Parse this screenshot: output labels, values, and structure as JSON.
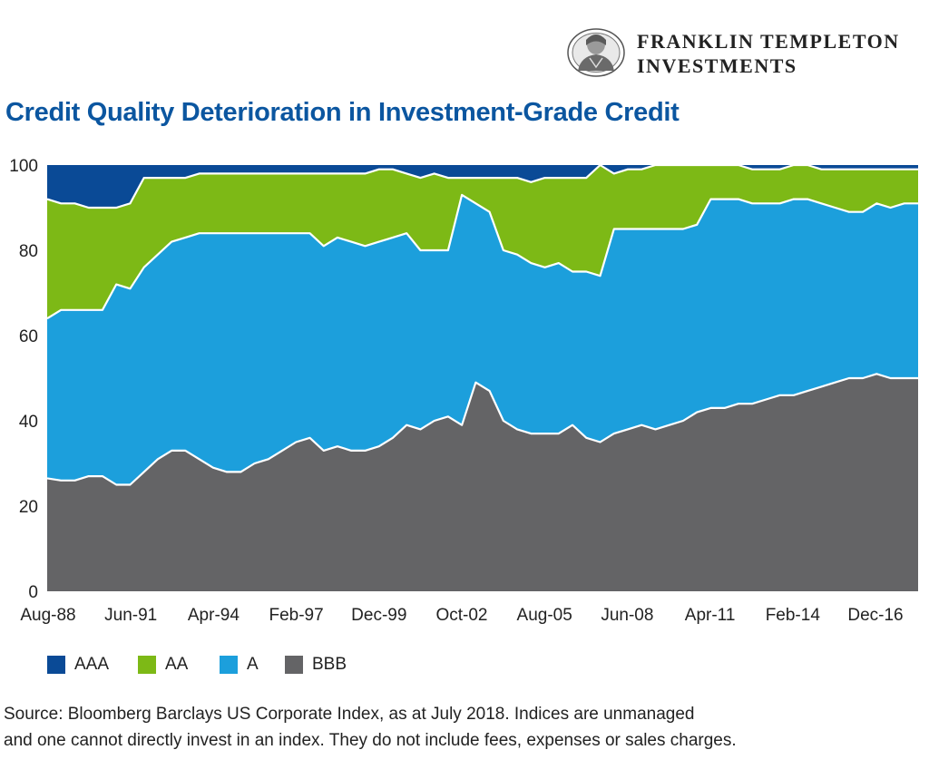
{
  "header": {
    "logo_line1": "FRANKLIN TEMPLETON",
    "logo_line2": "INVESTMENTS"
  },
  "chart_title": "Credit Quality Deterioration in Investment-Grade Credit",
  "legend": [
    {
      "label": "AAA",
      "color": "#0a4a96"
    },
    {
      "label": "AA",
      "color": "#7db916"
    },
    {
      "label": "A",
      "color": "#1c9fdc"
    },
    {
      "label": "BBB",
      "color": "#646466"
    }
  ],
  "source": {
    "line1": "Source: Bloomberg Barclays US Corporate Index, as at July 2018. Indices are unmanaged",
    "line2": "and one cannot directly invest in an index. They do not include fees, expenses or sales charges."
  },
  "chart_data": {
    "type": "area",
    "stacked": true,
    "title": "Credit Quality Deterioration in Investment-Grade Credit",
    "xlabel": "",
    "ylabel": "",
    "ylim": [
      0,
      100
    ],
    "yticks": [
      0,
      20,
      40,
      60,
      80,
      100
    ],
    "xticks": [
      "Aug-88",
      "Jun-91",
      "Apr-94",
      "Feb-97",
      "Dec-99",
      "Oct-02",
      "Aug-05",
      "Jun-08",
      "Apr-11",
      "Feb-14",
      "Dec-16"
    ],
    "grid": false,
    "legend_position": "bottom-left",
    "x": [
      "Aug-88",
      "Jun-89",
      "Jan-90",
      "Jun-90",
      "Dec-90",
      "May-91",
      "Jun-91",
      "Sep-91",
      "Mar-92",
      "Oct-92",
      "Apr-93",
      "Oct-93",
      "Apr-94",
      "Oct-94",
      "Apr-95",
      "Oct-95",
      "Apr-96",
      "Oct-96",
      "Feb-97",
      "Aug-97",
      "Feb-98",
      "Aug-98",
      "Feb-99",
      "Aug-99",
      "Dec-99",
      "Jun-00",
      "Dec-00",
      "Jun-01",
      "Dec-01",
      "Jun-02",
      "Oct-02",
      "Dec-02",
      "Jun-03",
      "Dec-03",
      "Jun-04",
      "Dec-04",
      "Aug-05",
      "Feb-06",
      "Aug-06",
      "Feb-07",
      "Aug-07",
      "Feb-08",
      "Jun-08",
      "Oct-08",
      "Apr-09",
      "Oct-09",
      "Apr-10",
      "Oct-10",
      "Apr-11",
      "Oct-11",
      "Apr-12",
      "Oct-12",
      "Apr-13",
      "Oct-13",
      "Feb-14",
      "Aug-14",
      "Feb-15",
      "Aug-15",
      "Feb-16",
      "Aug-16",
      "Dec-16",
      "Jun-17",
      "Dec-17",
      "Jul-18"
    ],
    "series": [
      {
        "name": "BBB",
        "color": "#646466",
        "values": [
          26.5,
          26,
          26,
          27,
          27,
          25,
          25,
          28,
          31,
          33,
          33,
          31,
          29,
          28,
          28,
          30,
          31,
          33,
          35,
          36,
          33,
          34,
          33,
          33,
          34,
          36,
          39,
          38,
          40,
          41,
          39,
          49,
          47,
          40,
          38,
          37,
          37,
          37,
          39,
          36,
          35,
          37,
          38,
          39,
          38,
          39,
          40,
          42,
          43,
          43,
          44,
          44,
          45,
          46,
          46,
          47,
          48,
          49,
          50,
          50,
          51,
          50,
          50,
          50
        ]
      },
      {
        "name": "A",
        "color": "#1c9fdc",
        "values": [
          37.5,
          40,
          40,
          39,
          39,
          47,
          46,
          48,
          48,
          49,
          50,
          53,
          55,
          56,
          56,
          54,
          53,
          51,
          49,
          48,
          48,
          49,
          49,
          48,
          48,
          47,
          45,
          42,
          40,
          39,
          54,
          42,
          42,
          40,
          41,
          40,
          39,
          40,
          36,
          39,
          39,
          48,
          47,
          46,
          47,
          46,
          45,
          44,
          49,
          49,
          48,
          47,
          46,
          45,
          46,
          45,
          43,
          41,
          39,
          39,
          40,
          40,
          41,
          41
        ]
      },
      {
        "name": "AA",
        "color": "#7db916",
        "values": [
          28,
          25,
          25,
          24,
          24,
          18,
          20,
          21,
          18,
          15,
          14,
          14,
          14,
          14,
          14,
          14,
          14,
          14,
          14,
          14,
          17,
          15,
          16,
          17,
          17,
          16,
          14,
          17,
          18,
          17,
          4,
          6,
          8,
          17,
          18,
          19,
          21,
          20,
          22,
          22,
          26,
          13,
          14,
          14,
          15,
          15,
          15,
          14,
          8,
          8,
          8,
          8,
          8,
          8,
          8,
          8,
          8,
          9,
          10,
          10,
          8,
          9,
          8,
          8
        ]
      },
      {
        "name": "AAA",
        "color": "#0a4a96",
        "values": [
          8,
          9,
          9,
          10,
          10,
          10,
          9,
          3,
          3,
          3,
          3,
          2,
          2,
          2,
          2,
          2,
          2,
          2,
          2,
          2,
          2,
          2,
          2,
          2,
          1,
          1,
          2,
          3,
          2,
          3,
          3,
          3,
          3,
          3,
          3,
          4,
          3,
          3,
          3,
          3,
          0,
          2,
          1,
          1,
          0,
          0,
          0,
          0,
          0,
          0,
          0,
          1,
          1,
          1,
          0,
          0,
          1,
          1,
          1,
          1,
          1,
          1,
          1,
          1
        ]
      }
    ]
  }
}
